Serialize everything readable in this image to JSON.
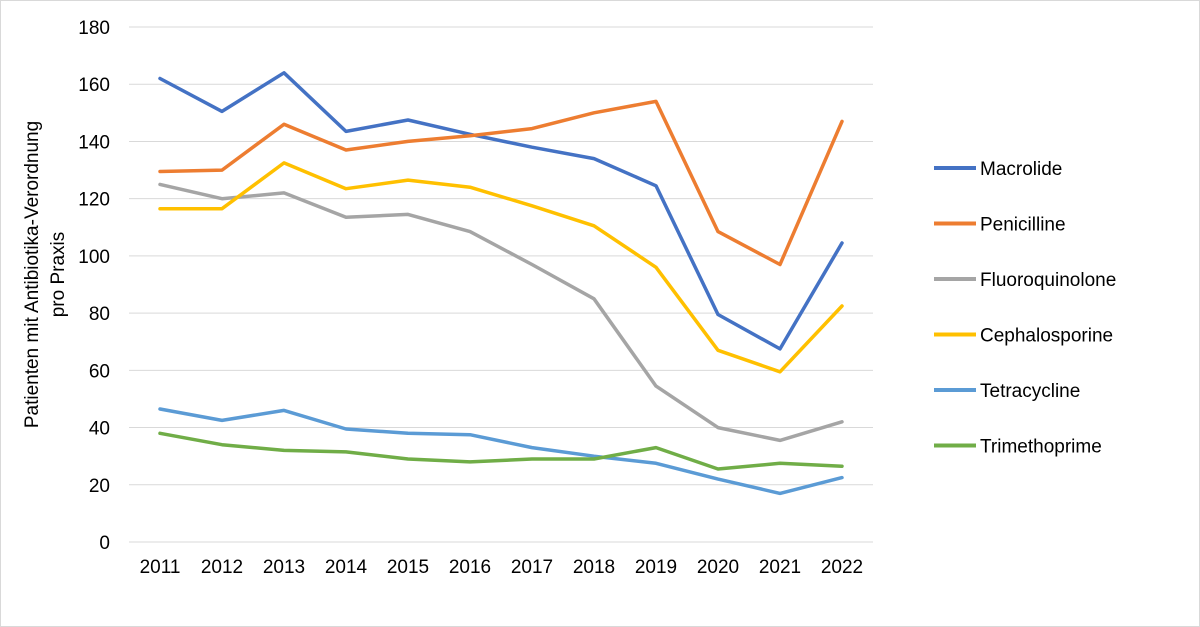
{
  "chart_data": {
    "type": "line",
    "title": "",
    "xlabel": "",
    "ylabel_lines": [
      "Patienten mit Antibiotika-Verordnung",
      "pro Praxis"
    ],
    "categories": [
      "2011",
      "2012",
      "2013",
      "2014",
      "2015",
      "2016",
      "2017",
      "2018",
      "2019",
      "2020",
      "2021",
      "2022"
    ],
    "ylim": [
      0,
      180
    ],
    "yticks": [
      0,
      20,
      40,
      60,
      80,
      100,
      120,
      140,
      160,
      180
    ],
    "grid": true,
    "legend_position": "right",
    "series": [
      {
        "name": "Macrolide",
        "color": "#4472C4",
        "values": [
          162,
          150.5,
          164,
          143.5,
          147.5,
          142.5,
          138,
          134,
          124.5,
          79.5,
          67.5,
          104.5
        ]
      },
      {
        "name": "Penicilline",
        "color": "#ED7D31",
        "values": [
          129.5,
          130,
          146,
          137,
          140,
          142,
          144.5,
          150,
          154,
          108.5,
          97,
          147
        ]
      },
      {
        "name": "Fluoroquinolone",
        "color": "#A5A5A5",
        "values": [
          125,
          120,
          122,
          113.5,
          114.5,
          108.5,
          97,
          85,
          54.5,
          40,
          35.5,
          42
        ]
      },
      {
        "name": "Cephalosporine",
        "color": "#FFC000",
        "values": [
          116.5,
          116.5,
          132.5,
          123.5,
          126.5,
          124,
          117.5,
          110.5,
          96,
          67,
          59.5,
          82.5
        ]
      },
      {
        "name": "Tetracycline",
        "color": "#5B9BD5",
        "values": [
          46.5,
          42.5,
          46,
          39.5,
          38,
          37.5,
          33,
          30,
          27.5,
          22,
          17,
          22.5
        ]
      },
      {
        "name": "Trimethoprime",
        "color": "#70AD47",
        "values": [
          38,
          34,
          32,
          31.5,
          29,
          28,
          29,
          29,
          33,
          25.5,
          27.5,
          26.5
        ]
      }
    ]
  }
}
